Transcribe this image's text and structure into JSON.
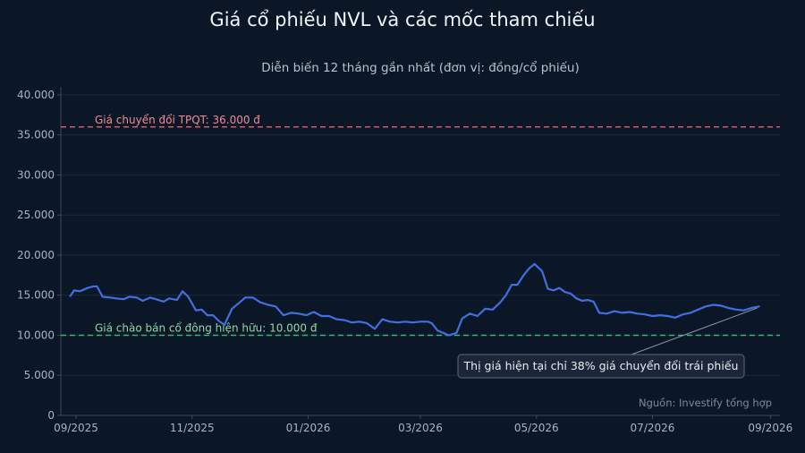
{
  "chart_data": {
    "type": "line",
    "title": "Giá cổ phiếu NVL và các mốc tham chiếu",
    "subtitle": "Diễn biến 12 tháng gần nhất (đơn vị: đồng/cổ phiếu)",
    "xlabel": "",
    "ylabel": "",
    "ylim": [
      0,
      41000
    ],
    "yticks": [
      0,
      5000,
      10000,
      15000,
      20000,
      25000,
      30000,
      35000,
      40000
    ],
    "ytick_labels": [
      "0",
      "5.000",
      "10.000",
      "15.000",
      "20.000",
      "25.000",
      "30.000",
      "35.000",
      "40.000"
    ],
    "xlim": [
      "2025-08-24",
      "2026-09-06"
    ],
    "xticks": [
      "2025-09-01",
      "2025-11-01",
      "2026-01-01",
      "2026-03-01",
      "2026-05-01",
      "2026-07-01",
      "2026-09-01"
    ],
    "xtick_labels": [
      "09/2025",
      "11/2025",
      "01/2026",
      "03/2026",
      "05/2026",
      "07/2026",
      "09/2026"
    ],
    "grid": "horizontal",
    "line_color": "#3f6fe0",
    "series": [
      {
        "name": "",
        "x": [
          "2025-08-29",
          "2025-08-31",
          "2025-09-03",
          "2025-09-07",
          "2025-09-10",
          "2025-09-12",
          "2025-09-15",
          "2025-09-19",
          "2025-09-22",
          "2025-09-26",
          "2025-09-29",
          "2025-10-03",
          "2025-10-06",
          "2025-10-10",
          "2025-10-13",
          "2025-10-17",
          "2025-10-20",
          "2025-10-24",
          "2025-10-27",
          "2025-10-30",
          "2025-11-03",
          "2025-11-06",
          "2025-11-09",
          "2025-11-12",
          "2025-11-15",
          "2025-11-18",
          "2025-11-22",
          "2025-11-26",
          "2025-11-29",
          "2025-12-03",
          "2025-12-07",
          "2025-12-11",
          "2025-12-15",
          "2025-12-19",
          "2025-12-23",
          "2025-12-27",
          "2025-12-31",
          "2026-01-04",
          "2026-01-08",
          "2026-01-12",
          "2026-01-16",
          "2026-01-20",
          "2026-01-24",
          "2026-01-28",
          "2026-02-01",
          "2026-02-05",
          "2026-02-09",
          "2026-02-13",
          "2026-02-17",
          "2026-02-21",
          "2026-02-25",
          "2026-03-01",
          "2026-03-05",
          "2026-03-07",
          "2026-03-10",
          "2026-03-13",
          "2026-03-16",
          "2026-03-20",
          "2026-03-23",
          "2026-03-27",
          "2026-03-31",
          "2026-04-04",
          "2026-04-08",
          "2026-04-12",
          "2026-04-15",
          "2026-04-18",
          "2026-04-21",
          "2026-04-24",
          "2026-04-27",
          "2026-04-30",
          "2026-05-04",
          "2026-05-07",
          "2026-05-10",
          "2026-05-13",
          "2026-05-16",
          "2026-05-19",
          "2026-05-22",
          "2026-05-25",
          "2026-05-28",
          "2026-05-31",
          "2026-06-03",
          "2026-06-07",
          "2026-06-11",
          "2026-06-15",
          "2026-06-19",
          "2026-06-23",
          "2026-06-27",
          "2026-07-01",
          "2026-07-05",
          "2026-07-09",
          "2026-07-13",
          "2026-07-17",
          "2026-07-21",
          "2026-07-25",
          "2026-07-29",
          "2026-08-02",
          "2026-08-06",
          "2026-08-10",
          "2026-08-14",
          "2026-08-18",
          "2026-08-22",
          "2026-08-26"
        ],
        "values": [
          14900,
          15600,
          15500,
          15900,
          16100,
          16100,
          14800,
          14700,
          14600,
          14500,
          14800,
          14700,
          14300,
          14700,
          14500,
          14200,
          14600,
          14400,
          15500,
          14800,
          13100,
          13200,
          12500,
          12500,
          11800,
          11300,
          13300,
          14100,
          14700,
          14700,
          14100,
          13800,
          13600,
          12500,
          12800,
          12700,
          12500,
          12900,
          12400,
          12400,
          12000,
          11900,
          11600,
          11700,
          11500,
          10800,
          12000,
          11700,
          11600,
          11700,
          11600,
          11700,
          11700,
          11500,
          10600,
          10300,
          10000,
          10300,
          12100,
          12700,
          12400,
          13300,
          13200,
          14100,
          15000,
          16300,
          16300,
          17400,
          18300,
          18900,
          18000,
          15800,
          15600,
          15900,
          15400,
          15200,
          14600,
          14300,
          14400,
          14200,
          12800,
          12700,
          13000,
          12800,
          12900,
          12700,
          12600,
          12400,
          12500,
          12400,
          12200,
          12600,
          12800,
          13200,
          13600,
          13800,
          13700,
          13400,
          13200,
          13100,
          13400,
          13600
        ]
      }
    ],
    "reference_lines": [
      {
        "label": "Giá chuyển đổi TPQT: 36.000 đ",
        "value": 36000,
        "color": "#e05563",
        "label_color": "#f08c95"
      },
      {
        "label": "Giá chào bán cổ đông hiện hữu: 10.000 đ",
        "value": 10000,
        "color": "#35b86c",
        "label_color": "#8fd9aa"
      }
    ],
    "annotation": {
      "text": "Thị giá hiện tại chỉ 38% giá chuyển đổi trái phiếu",
      "point_date": "2026-08-25",
      "point_value": 13400
    },
    "source_note": "Nguồn: Investify tổng hợp"
  }
}
